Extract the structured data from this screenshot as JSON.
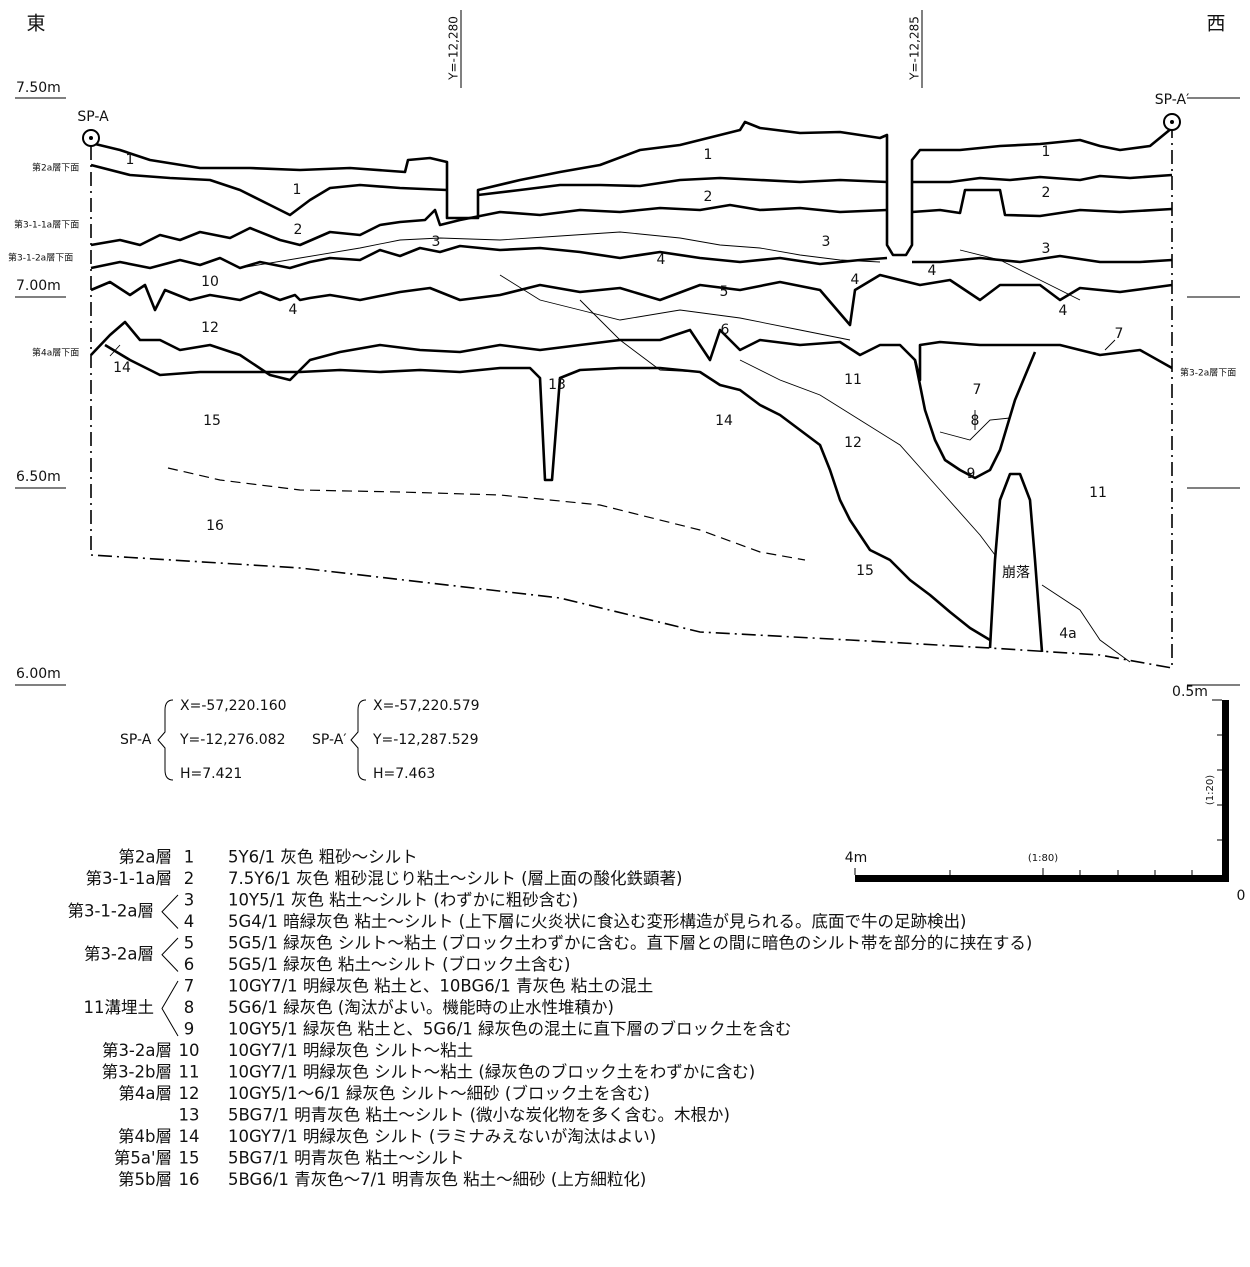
{
  "directions": {
    "east": "東",
    "west": "西"
  },
  "grid_lines": [
    "Y=-12,280",
    "Y=-12,285"
  ],
  "elevations": [
    "7.50m",
    "7.00m",
    "6.50m",
    "6.00m"
  ],
  "surface_labels": [
    "第2a層下面",
    "第3-1-1a層下面",
    "第3-1-2a層下面",
    "第4a層下面",
    "第3-2a層下面"
  ],
  "section_labels": [
    "1",
    "1",
    "1",
    "1",
    "2",
    "2",
    "2",
    "3",
    "3",
    "3",
    "4",
    "4",
    "4",
    "4",
    "4",
    "10",
    "5",
    "12",
    "6",
    "7",
    "14",
    "11",
    "7",
    "13",
    "15",
    "14",
    "8",
    "12",
    "9",
    "11",
    "16",
    "崩落",
    "15",
    "4a"
  ],
  "points": [
    {
      "label": "SP-A",
      "x": "X=-57,220.160",
      "y": "Y=-12,276.082",
      "h": "H=7.421"
    },
    {
      "label": "SP-A′",
      "x": "X=-57,220.579",
      "y": "Y=-12,287.529",
      "h": "H=7.463"
    }
  ],
  "scale": {
    "vertical_length": "0.5m",
    "vertical_ratio": "(1:20)",
    "horizontal_length": "4m",
    "horizontal_ratio": "(1:80)",
    "zero": "0"
  },
  "legend": [
    {
      "group": "第2a層",
      "rows": [
        {
          "no": "1",
          "text": "5Y6/1 灰色 粗砂～シルト"
        }
      ]
    },
    {
      "group": "第3-1-1a層",
      "rows": [
        {
          "no": "2",
          "text": "7.5Y6/1 灰色 粗砂混じり粘土～シルト (層上面の酸化鉄顕著)"
        }
      ]
    },
    {
      "group": "第3-1-2a層",
      "rows": [
        {
          "no": "3",
          "text": "10Y5/1 灰色 粘土～シルト (わずかに粗砂含む)"
        },
        {
          "no": "4",
          "text": "5G4/1 暗緑灰色 粘土～シルト (上下層に火炎状に食込む変形構造が見られる。底面で牛の足跡検出)"
        }
      ]
    },
    {
      "group": "第3-2a層",
      "rows": [
        {
          "no": "5",
          "text": "5G5/1 緑灰色 シルト～粘土 (ブロック土わずかに含む。直下層との間に暗色のシルト帯を部分的に挟在する)"
        },
        {
          "no": "6",
          "text": "5G5/1 緑灰色 粘土～シルト (ブロック土含む)"
        }
      ]
    },
    {
      "group": "11溝埋土",
      "rows": [
        {
          "no": "7",
          "text": "10GY7/1 明緑灰色 粘土と、10BG6/1 青灰色 粘土の混土"
        },
        {
          "no": "8",
          "text": "5G6/1 緑灰色 (淘汰がよい。機能時の止水性堆積か)"
        },
        {
          "no": "9",
          "text": "10GY5/1 緑灰色 粘土と、5G6/1 緑灰色の混土に直下層のブロック土を含む"
        }
      ]
    },
    {
      "group": "第3-2a層",
      "rows": [
        {
          "no": "10",
          "text": "10GY7/1 明緑灰色 シルト～粘土"
        }
      ]
    },
    {
      "group": "第3-2b層",
      "rows": [
        {
          "no": "11",
          "text": "10GY7/1 明緑灰色 シルト～粘土 (緑灰色のブロック土をわずかに含む)"
        }
      ]
    },
    {
      "group": "第4a層",
      "rows": [
        {
          "no": "12",
          "text": "10GY5/1～6/1 緑灰色 シルト～細砂 (ブロック土を含む)"
        }
      ]
    },
    {
      "rows": [
        {
          "no": "13",
          "text": "5BG7/1 明青灰色 粘土～シルト (微小な炭化物を多く含む。木根か)"
        }
      ]
    },
    {
      "group": "第4b層",
      "rows": [
        {
          "no": "14",
          "text": "10GY7/1 明緑灰色 シルト (ラミナみえないが淘汰はよい)"
        }
      ]
    },
    {
      "group": "第5a'層",
      "rows": [
        {
          "no": "15",
          "text": "5BG7/1 明青灰色 粘土～シルト"
        }
      ]
    },
    {
      "group": "第5b層",
      "rows": [
        {
          "no": "16",
          "text": "5BG6/1 青灰色～7/1 明青灰色 粘土～細砂 (上方細粒化)"
        }
      ]
    }
  ]
}
